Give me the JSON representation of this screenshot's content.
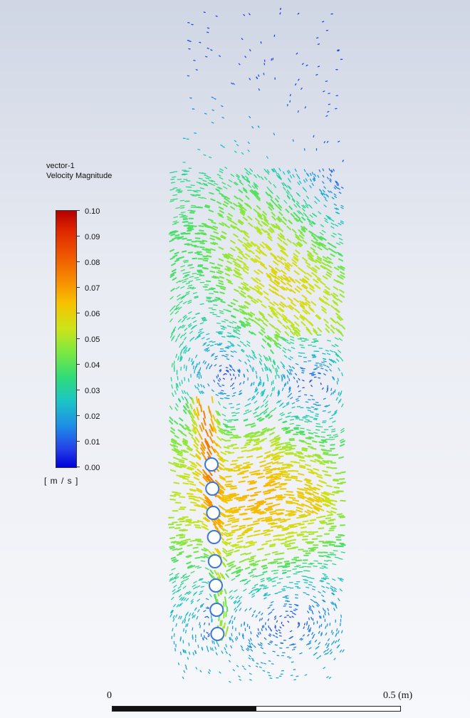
{
  "legend": {
    "title_line1": "vector-1",
    "title_line2": "Velocity Magnitude",
    "unit": "[ m / s ]",
    "range": [
      0.0,
      0.1
    ],
    "ticks": [
      "0.10",
      "0.09",
      "0.08",
      "0.07",
      "0.06",
      "0.05",
      "0.04",
      "0.03",
      "0.02",
      "0.01",
      "0.00"
    ],
    "colormap": [
      "#0000d8",
      "#2440e8",
      "#1e8de6",
      "#1cc5c5",
      "#2fdb7a",
      "#7de840",
      "#cce419",
      "#f6c200",
      "#f79000",
      "#f05a00",
      "#e02800",
      "#b40000"
    ]
  },
  "scale_bar": {
    "start_label": "0",
    "end_label": "0.5 (m)"
  }
}
